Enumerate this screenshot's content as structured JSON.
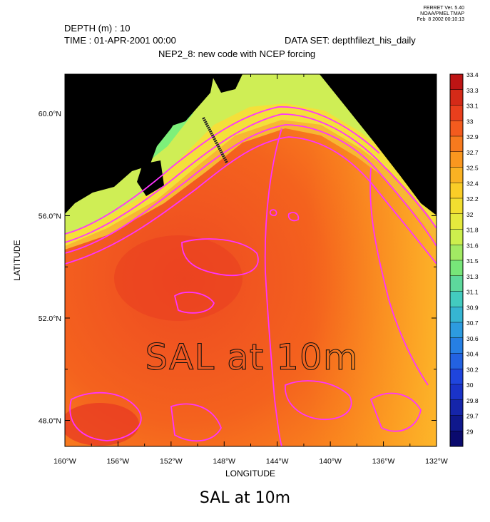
{
  "ferret_info": [
    "FERRET Ver. 5.40",
    "NOAA/PMEL TMAP",
    "Feb  8 2002 00:10:13"
  ],
  "header": {
    "depth": "DEPTH (m) : 10",
    "time": "TIME : 01-APR-2001 00:00",
    "dataset": "DATA SET: depthfilezt_his_daily",
    "subtitle": "NEP2_8: new code with NCEP forcing"
  },
  "map": {
    "overlay_label": "SAL at 10m",
    "xlabel": "LONGITUDE",
    "ylabel": "LATITUDE",
    "lon_ticks": [
      "160°W",
      "156°W",
      "152°W",
      "148°W",
      "144°W",
      "140°W",
      "136°W",
      "132°W"
    ],
    "lat_ticks": [
      "60.0°N",
      "56.0°N",
      "52.0°N",
      "48.0°N"
    ],
    "land_color": "#000000",
    "contour_color": "#ff33ff"
  },
  "colorbar": {
    "labels": [
      "33.4",
      "33.3",
      "33.1",
      "33",
      "32.9",
      "32.7",
      "32.5",
      "32.4",
      "32.2",
      "32",
      "31.8",
      "31.6",
      "31.5",
      "31.3",
      "31.1",
      "30.9",
      "30.7",
      "30.6",
      "30.4",
      "30.2",
      "30",
      "29.8",
      "29.7",
      "29"
    ]
  },
  "caption": "SAL at 10m"
}
